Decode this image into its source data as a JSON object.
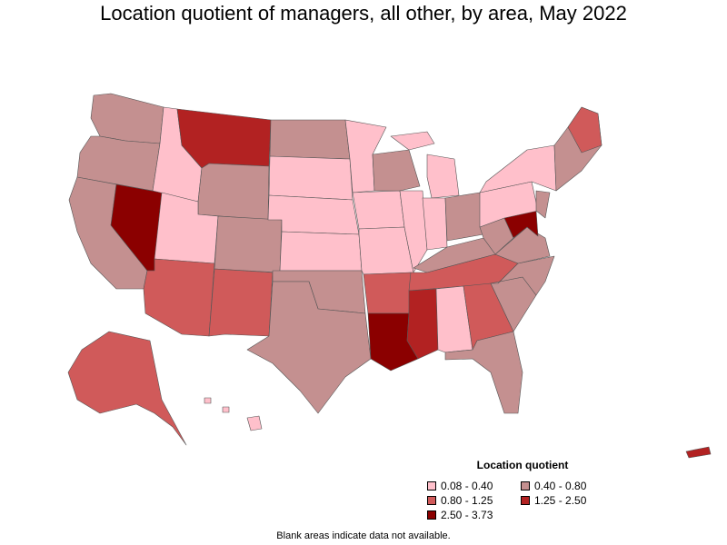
{
  "title": "Location quotient of managers, all other, by area, May 2022",
  "legend": {
    "title": "Location quotient",
    "items": [
      {
        "label": "0.08 - 0.40",
        "color": "#ffc0cb"
      },
      {
        "label": "0.40 - 0.80",
        "color": "#c49090"
      },
      {
        "label": "0.80 - 1.25",
        "color": "#d05a5a"
      },
      {
        "label": "1.25 - 2.50",
        "color": "#b22222"
      },
      {
        "label": "2.50 - 3.73",
        "color": "#8b0000"
      }
    ]
  },
  "note": "Blank areas indicate data not available.",
  "regions": [
    {
      "name": "Nevada",
      "level": 4
    },
    {
      "name": "Montana",
      "level": 3
    },
    {
      "name": "Louisiana",
      "level": 4
    },
    {
      "name": "Mississippi",
      "level": 3
    },
    {
      "name": "Maryland",
      "level": 4
    },
    {
      "name": "Alaska",
      "level": 2
    },
    {
      "name": "Kansas",
      "level": 0
    },
    {
      "name": "Nebraska",
      "level": 0
    },
    {
      "name": "New Mexico",
      "level": 2
    },
    {
      "name": "Arizona",
      "level": 2
    },
    {
      "name": "Texas",
      "level": 1
    },
    {
      "name": "Georgia",
      "level": 2
    },
    {
      "name": "Florida",
      "level": 1
    },
    {
      "name": "Hawaii",
      "level": 0
    },
    {
      "name": "Puerto Rico",
      "level": 3
    }
  ]
}
